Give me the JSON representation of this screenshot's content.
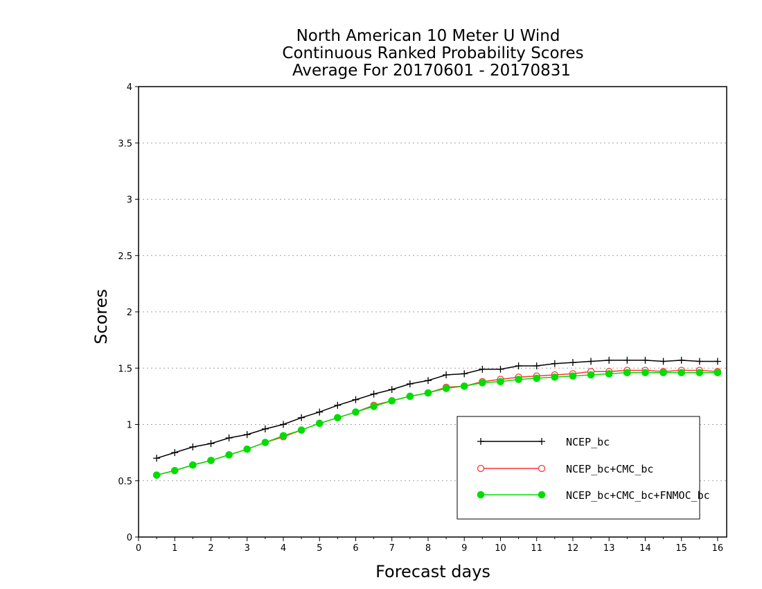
{
  "chart_data": {
    "type": "line",
    "title": [
      "North American 10 Meter U Wind",
      "Continuous Ranked Probability Scores",
      "Average For 20170601 - 20170831"
    ],
    "xlabel": "Forecast days",
    "ylabel": "Scores",
    "xlim": [
      0,
      16.25
    ],
    "ylim": [
      0,
      4
    ],
    "xticks": [
      "0",
      "1",
      "2",
      "3",
      "4",
      "5",
      "6",
      "7",
      "8",
      "9",
      "10",
      "11",
      "12",
      "13",
      "14",
      "15",
      "16"
    ],
    "yticks": [
      "0",
      "0.5",
      "1",
      "1.5",
      "2",
      "2.5",
      "3",
      "3.5",
      "4"
    ],
    "grid": "horizontal dotted",
    "legend_position": "bottom-right",
    "x": [
      0.5,
      1,
      1.5,
      2,
      2.5,
      3,
      3.5,
      4,
      4.5,
      5,
      5.5,
      6,
      6.5,
      7,
      7.5,
      8,
      8.5,
      9,
      9.5,
      10,
      10.5,
      11,
      11.5,
      12,
      12.5,
      13,
      13.5,
      14,
      14.5,
      15,
      15.5,
      16
    ],
    "series": [
      {
        "name": "NCEP_bc",
        "color": "#000000",
        "marker": "plus",
        "values": [
          0.7,
          0.75,
          0.8,
          0.83,
          0.88,
          0.91,
          0.96,
          1.0,
          1.06,
          1.11,
          1.17,
          1.22,
          1.27,
          1.31,
          1.36,
          1.39,
          1.44,
          1.45,
          1.49,
          1.49,
          1.52,
          1.52,
          1.54,
          1.55,
          1.56,
          1.57,
          1.57,
          1.57,
          1.56,
          1.57,
          1.56,
          1.56
        ]
      },
      {
        "name": "NCEP_bc+CMC_bc",
        "color": "#ff3333",
        "marker": "open-circle",
        "values": [
          0.55,
          0.59,
          0.64,
          0.68,
          0.73,
          0.78,
          0.84,
          0.89,
          0.95,
          1.01,
          1.06,
          1.11,
          1.17,
          1.21,
          1.25,
          1.28,
          1.33,
          1.34,
          1.38,
          1.4,
          1.42,
          1.43,
          1.44,
          1.45,
          1.47,
          1.47,
          1.48,
          1.48,
          1.47,
          1.48,
          1.48,
          1.47
        ]
      },
      {
        "name": "NCEP_bc+CMC_bc+FNMOC_bc",
        "color": "#00dd00",
        "marker": "filled-circle",
        "values": [
          0.55,
          0.59,
          0.64,
          0.68,
          0.73,
          0.78,
          0.84,
          0.9,
          0.95,
          1.01,
          1.06,
          1.11,
          1.16,
          1.21,
          1.25,
          1.28,
          1.32,
          1.34,
          1.37,
          1.38,
          1.4,
          1.41,
          1.42,
          1.43,
          1.44,
          1.45,
          1.46,
          1.46,
          1.46,
          1.46,
          1.46,
          1.46
        ]
      }
    ]
  }
}
